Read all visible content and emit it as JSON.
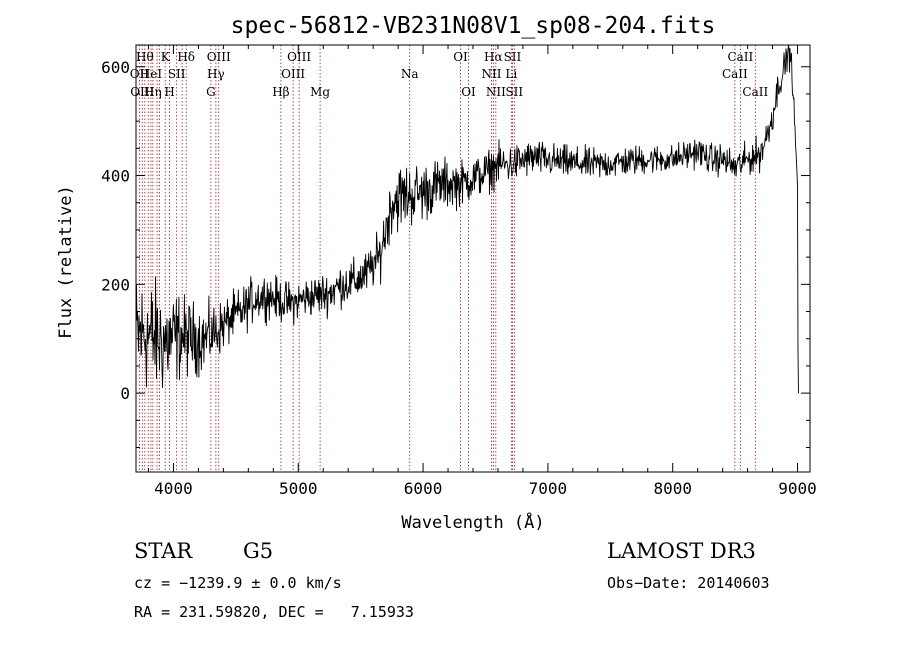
{
  "chart_data": {
    "type": "line",
    "title": "spec-56812-VB231N08V1_sp08-204.fits",
    "xlabel": "Wavelength (Å)",
    "ylabel": "Flux (relative)",
    "xlim": [
      3700,
      9100
    ],
    "ylim": [
      -145,
      640
    ],
    "x_ticks": [
      4000,
      5000,
      6000,
      7000,
      8000,
      9000
    ],
    "y_ticks": [
      0,
      200,
      400,
      600
    ],
    "x_tick_labels": [
      "4000",
      "5000",
      "6000",
      "7000",
      "8000",
      "9000"
    ],
    "y_tick_labels": [
      "0",
      "200",
      "400",
      "600"
    ],
    "continuum": [
      {
        "x": 3700,
        "y": 105
      },
      {
        "x": 3780,
        "y": 110
      },
      {
        "x": 3850,
        "y": 100
      },
      {
        "x": 3950,
        "y": 95
      },
      {
        "x": 4050,
        "y": 105
      },
      {
        "x": 4150,
        "y": 100
      },
      {
        "x": 4250,
        "y": 100
      },
      {
        "x": 4350,
        "y": 115
      },
      {
        "x": 4450,
        "y": 135
      },
      {
        "x": 4550,
        "y": 150
      },
      {
        "x": 4650,
        "y": 175
      },
      {
        "x": 4750,
        "y": 180
      },
      {
        "x": 4850,
        "y": 170
      },
      {
        "x": 4950,
        "y": 165
      },
      {
        "x": 5050,
        "y": 175
      },
      {
        "x": 5150,
        "y": 180
      },
      {
        "x": 5250,
        "y": 185
      },
      {
        "x": 5350,
        "y": 200
      },
      {
        "x": 5450,
        "y": 205
      },
      {
        "x": 5550,
        "y": 220
      },
      {
        "x": 5650,
        "y": 250
      },
      {
        "x": 5700,
        "y": 300
      },
      {
        "x": 5750,
        "y": 350
      },
      {
        "x": 5800,
        "y": 360
      },
      {
        "x": 5900,
        "y": 365
      },
      {
        "x": 6000,
        "y": 370
      },
      {
        "x": 6100,
        "y": 380
      },
      {
        "x": 6200,
        "y": 385
      },
      {
        "x": 6300,
        "y": 385
      },
      {
        "x": 6400,
        "y": 395
      },
      {
        "x": 6500,
        "y": 405
      },
      {
        "x": 6600,
        "y": 420
      },
      {
        "x": 6700,
        "y": 420
      },
      {
        "x": 6800,
        "y": 428
      },
      {
        "x": 6900,
        "y": 433
      },
      {
        "x": 7000,
        "y": 428
      },
      {
        "x": 7200,
        "y": 423
      },
      {
        "x": 7400,
        "y": 420
      },
      {
        "x": 7600,
        "y": 425
      },
      {
        "x": 7800,
        "y": 430
      },
      {
        "x": 8000,
        "y": 430
      },
      {
        "x": 8200,
        "y": 445
      },
      {
        "x": 8300,
        "y": 430
      },
      {
        "x": 8400,
        "y": 430
      },
      {
        "x": 8500,
        "y": 415
      },
      {
        "x": 8600,
        "y": 430
      },
      {
        "x": 8700,
        "y": 440
      },
      {
        "x": 8750,
        "y": 470
      },
      {
        "x": 8800,
        "y": 510
      },
      {
        "x": 8850,
        "y": 570
      },
      {
        "x": 8900,
        "y": 600
      },
      {
        "x": 8930,
        "y": 640
      },
      {
        "x": 8960,
        "y": 580
      },
      {
        "x": 9000,
        "y": 380
      },
      {
        "x": 9005,
        "y": 0
      },
      {
        "x": 9010,
        "y": 0
      }
    ],
    "noise_amplitude": [
      {
        "x": 3700,
        "y": 110
      },
      {
        "x": 3900,
        "y": 100
      },
      {
        "x": 4100,
        "y": 70
      },
      {
        "x": 4400,
        "y": 45
      },
      {
        "x": 5000,
        "y": 35
      },
      {
        "x": 5600,
        "y": 40
      },
      {
        "x": 5800,
        "y": 60
      },
      {
        "x": 6300,
        "y": 40
      },
      {
        "x": 7000,
        "y": 30
      },
      {
        "x": 8000,
        "y": 25
      },
      {
        "x": 8700,
        "y": 30
      },
      {
        "x": 8960,
        "y": 30
      },
      {
        "x": 9010,
        "y": 0
      }
    ],
    "sample_step": 4,
    "line_color": "#000000",
    "marker_color": "#9b1c1c",
    "lines": [
      {
        "wl": 3727,
        "label": "OII",
        "row": 1
      },
      {
        "wl": 3750,
        "label": "OIII",
        "row": 2
      },
      {
        "wl": 3771,
        "label": "Hθ",
        "row": 0
      },
      {
        "wl": 3798,
        "label": "",
        "row": 0
      },
      {
        "wl": 3820,
        "label": "HeI",
        "row": 1
      },
      {
        "wl": 3835,
        "label": "Hη",
        "row": 2
      },
      {
        "wl": 3869,
        "label": "",
        "row": 0
      },
      {
        "wl": 3889,
        "label": "",
        "row": 1
      },
      {
        "wl": 3934,
        "label": "K",
        "row": 0
      },
      {
        "wl": 3969,
        "label": "H",
        "row": 2
      },
      {
        "wl": 4026,
        "label": "SII",
        "row": 1
      },
      {
        "wl": 4070,
        "label": "",
        "row": 0
      },
      {
        "wl": 4102,
        "label": "Hδ",
        "row": 0
      },
      {
        "wl": 4300,
        "label": "G",
        "row": 2
      },
      {
        "wl": 4340,
        "label": "Hγ",
        "row": 1
      },
      {
        "wl": 4363,
        "label": "OIII",
        "row": 0
      },
      {
        "wl": 4861,
        "label": "Hβ",
        "row": 2
      },
      {
        "wl": 4959,
        "label": "OIII",
        "row": 1
      },
      {
        "wl": 5007,
        "label": "OIII",
        "row": 0
      },
      {
        "wl": 5175,
        "label": "Mg",
        "row": 2
      },
      {
        "wl": 5893,
        "label": "Na",
        "row": 1
      },
      {
        "wl": 6300,
        "label": "OI",
        "row": 0
      },
      {
        "wl": 6364,
        "label": "OI",
        "row": 2
      },
      {
        "wl": 6548,
        "label": "NII",
        "row": 1
      },
      {
        "wl": 6563,
        "label": "Hα",
        "row": 0
      },
      {
        "wl": 6583,
        "label": "NII",
        "row": 2
      },
      {
        "wl": 6707,
        "label": "Li",
        "row": 1
      },
      {
        "wl": 6716,
        "label": "SII",
        "row": 0
      },
      {
        "wl": 6731,
        "label": "SII",
        "row": 2
      },
      {
        "wl": 8498,
        "label": "CaII",
        "row": 1
      },
      {
        "wl": 8542,
        "label": "CaII",
        "row": 0
      },
      {
        "wl": 8662,
        "label": "CaII",
        "row": 2
      }
    ]
  },
  "info": {
    "class": "STAR",
    "subclass": "G5",
    "survey": "LAMOST DR3",
    "cz": "cz = −1239.9 ± 0.0 km/s",
    "obs_date": "Obs−Date: 20140603",
    "coords": "RA = 231.59820, DEC =   7.15933"
  }
}
